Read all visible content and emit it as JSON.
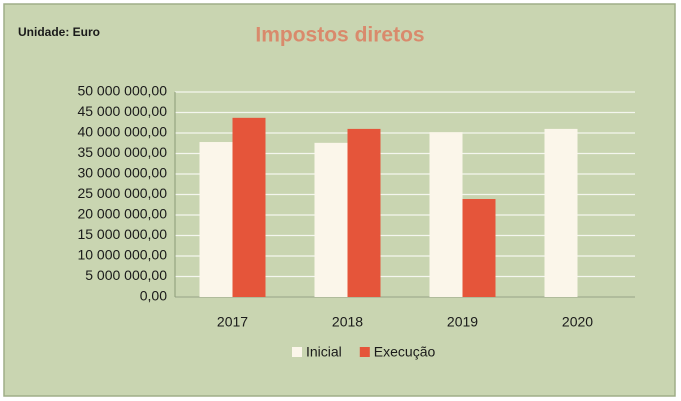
{
  "chart_data": {
    "type": "bar",
    "title": "Impostos diretos",
    "subtitle": "Unidade: Euro",
    "categories": [
      "2017",
      "2018",
      "2019",
      "2020"
    ],
    "series": [
      {
        "name": "Inicial",
        "color": "#fbf6ea",
        "values": [
          37800000,
          37600000,
          40200000,
          41000000
        ]
      },
      {
        "name": "Execução",
        "color": "#e5553a",
        "values": [
          43700000,
          41000000,
          23900000,
          null
        ]
      }
    ],
    "ylim": [
      0,
      50000000
    ],
    "yticks": [
      {
        "value": 0,
        "label": "0,00"
      },
      {
        "value": 5000000,
        "label": "5 000 000,00"
      },
      {
        "value": 10000000,
        "label": "10 000 000,00"
      },
      {
        "value": 15000000,
        "label": "15 000 000,00"
      },
      {
        "value": 20000000,
        "label": "20 000 000,00"
      },
      {
        "value": 25000000,
        "label": "25 000 000,00"
      },
      {
        "value": 30000000,
        "label": "30 000 000,00"
      },
      {
        "value": 35000000,
        "label": "35 000 000,00"
      },
      {
        "value": 40000000,
        "label": "40 000 000,00"
      },
      {
        "value": 45000000,
        "label": "45 000 000,00"
      },
      {
        "value": 50000000,
        "label": "50 000 000,00"
      }
    ],
    "grid": true,
    "legend": "bottom"
  }
}
